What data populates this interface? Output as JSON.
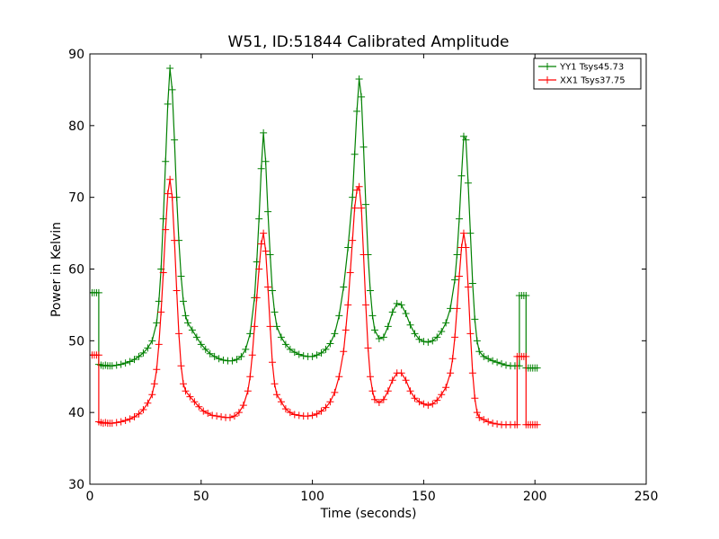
{
  "chart_data": {
    "type": "line",
    "title": "W51, ID:51844 Calibrated Amplitude",
    "xlabel": "Time (seconds)",
    "ylabel": "Power in Kelvin",
    "xlim": [
      0,
      250
    ],
    "ylim": [
      30,
      90
    ],
    "x_ticks": [
      0,
      50,
      100,
      150,
      200,
      250
    ],
    "y_ticks": [
      30,
      40,
      50,
      60,
      70,
      80,
      90
    ],
    "grid": false,
    "legend_position": "top-right",
    "marker": "+",
    "series": [
      {
        "name": "YY1 Tsys45.73",
        "color": "#008000",
        "points": [
          [
            0,
            56.7
          ],
          [
            1,
            56.7
          ],
          [
            2,
            56.7
          ],
          [
            3,
            56.7
          ],
          [
            4,
            56.7
          ],
          [
            4,
            46.7
          ],
          [
            5,
            46.6
          ],
          [
            6,
            46.5
          ],
          [
            7,
            46.6
          ],
          [
            8,
            46.5
          ],
          [
            9,
            46.5
          ],
          [
            10,
            46.5
          ],
          [
            12,
            46.6
          ],
          [
            14,
            46.7
          ],
          [
            16,
            46.9
          ],
          [
            18,
            47.1
          ],
          [
            20,
            47.4
          ],
          [
            22,
            47.8
          ],
          [
            24,
            48.3
          ],
          [
            26,
            49.0
          ],
          [
            28,
            50.0
          ],
          [
            30,
            52.5
          ],
          [
            31,
            55.5
          ],
          [
            32,
            60.0
          ],
          [
            33,
            67.0
          ],
          [
            34,
            75.0
          ],
          [
            35,
            83.0
          ],
          [
            36,
            88.0
          ],
          [
            37,
            85.0
          ],
          [
            38,
            78.0
          ],
          [
            39,
            70.0
          ],
          [
            40,
            64.0
          ],
          [
            41,
            59.0
          ],
          [
            42,
            55.5
          ],
          [
            43,
            53.5
          ],
          [
            44,
            52.5
          ],
          [
            46,
            51.5
          ],
          [
            48,
            50.5
          ],
          [
            50,
            49.5
          ],
          [
            52,
            48.8
          ],
          [
            54,
            48.2
          ],
          [
            56,
            47.8
          ],
          [
            58,
            47.5
          ],
          [
            60,
            47.3
          ],
          [
            62,
            47.2
          ],
          [
            64,
            47.2
          ],
          [
            66,
            47.4
          ],
          [
            68,
            47.8
          ],
          [
            70,
            48.8
          ],
          [
            72,
            51.0
          ],
          [
            74,
            56.0
          ],
          [
            75,
            61.0
          ],
          [
            76,
            67.0
          ],
          [
            77,
            74.0
          ],
          [
            78,
            79.0
          ],
          [
            79,
            75.0
          ],
          [
            80,
            68.0
          ],
          [
            81,
            62.0
          ],
          [
            82,
            57.0
          ],
          [
            83,
            54.0
          ],
          [
            84,
            52.0
          ],
          [
            86,
            50.5
          ],
          [
            88,
            49.5
          ],
          [
            90,
            48.8
          ],
          [
            92,
            48.4
          ],
          [
            94,
            48.1
          ],
          [
            96,
            47.9
          ],
          [
            98,
            47.8
          ],
          [
            100,
            47.8
          ],
          [
            102,
            48.0
          ],
          [
            104,
            48.3
          ],
          [
            106,
            48.8
          ],
          [
            108,
            49.6
          ],
          [
            110,
            51.0
          ],
          [
            112,
            53.5
          ],
          [
            114,
            57.5
          ],
          [
            116,
            63.0
          ],
          [
            118,
            70.0
          ],
          [
            119,
            76.0
          ],
          [
            120,
            82.0
          ],
          [
            121,
            86.5
          ],
          [
            122,
            84.0
          ],
          [
            123,
            77.0
          ],
          [
            124,
            69.0
          ],
          [
            125,
            62.0
          ],
          [
            126,
            57.0
          ],
          [
            127,
            53.5
          ],
          [
            128,
            51.5
          ],
          [
            130,
            50.3
          ],
          [
            132,
            50.5
          ],
          [
            134,
            52.0
          ],
          [
            136,
            54.0
          ],
          [
            138,
            55.2
          ],
          [
            140,
            55.0
          ],
          [
            142,
            53.8
          ],
          [
            144,
            52.2
          ],
          [
            146,
            51.0
          ],
          [
            148,
            50.2
          ],
          [
            150,
            49.9
          ],
          [
            152,
            49.8
          ],
          [
            154,
            50.0
          ],
          [
            156,
            50.5
          ],
          [
            158,
            51.3
          ],
          [
            160,
            52.5
          ],
          [
            162,
            54.5
          ],
          [
            164,
            58.5
          ],
          [
            165,
            62.0
          ],
          [
            166,
            67.0
          ],
          [
            167,
            73.0
          ],
          [
            168,
            78.5
          ],
          [
            169,
            78.0
          ],
          [
            170,
            72.0
          ],
          [
            171,
            65.0
          ],
          [
            172,
            58.0
          ],
          [
            173,
            53.0
          ],
          [
            174,
            50.0
          ],
          [
            175,
            48.5
          ],
          [
            177,
            47.8
          ],
          [
            179,
            47.5
          ],
          [
            181,
            47.2
          ],
          [
            183,
            47.0
          ],
          [
            185,
            46.8
          ],
          [
            187,
            46.6
          ],
          [
            189,
            46.5
          ],
          [
            191,
            46.5
          ],
          [
            192,
            46.5
          ],
          [
            193,
            46.5
          ],
          [
            193,
            56.3
          ],
          [
            194,
            56.3
          ],
          [
            195,
            56.3
          ],
          [
            196,
            56.3
          ],
          [
            196,
            46.2
          ],
          [
            197,
            46.2
          ],
          [
            198,
            46.2
          ],
          [
            199,
            46.2
          ],
          [
            200,
            46.2
          ],
          [
            201,
            46.2
          ]
        ]
      },
      {
        "name": "XX1 Tsys37.75",
        "color": "#ff0000",
        "points": [
          [
            0,
            48.0
          ],
          [
            1,
            48.0
          ],
          [
            2,
            48.0
          ],
          [
            3,
            48.0
          ],
          [
            4,
            48.0
          ],
          [
            4,
            38.7
          ],
          [
            5,
            38.6
          ],
          [
            6,
            38.5
          ],
          [
            7,
            38.6
          ],
          [
            8,
            38.5
          ],
          [
            9,
            38.5
          ],
          [
            10,
            38.5
          ],
          [
            12,
            38.6
          ],
          [
            14,
            38.7
          ],
          [
            16,
            38.9
          ],
          [
            18,
            39.1
          ],
          [
            20,
            39.4
          ],
          [
            22,
            39.8
          ],
          [
            24,
            40.4
          ],
          [
            26,
            41.3
          ],
          [
            28,
            42.5
          ],
          [
            29,
            44.0
          ],
          [
            30,
            46.0
          ],
          [
            31,
            49.5
          ],
          [
            32,
            54.0
          ],
          [
            33,
            59.5
          ],
          [
            34,
            65.5
          ],
          [
            35,
            70.5
          ],
          [
            36,
            72.5
          ],
          [
            37,
            70.0
          ],
          [
            38,
            64.0
          ],
          [
            39,
            57.0
          ],
          [
            40,
            51.0
          ],
          [
            41,
            46.5
          ],
          [
            42,
            44.0
          ],
          [
            43,
            43.0
          ],
          [
            45,
            42.2
          ],
          [
            47,
            41.5
          ],
          [
            49,
            40.8
          ],
          [
            51,
            40.2
          ],
          [
            53,
            39.9
          ],
          [
            55,
            39.6
          ],
          [
            57,
            39.5
          ],
          [
            59,
            39.4
          ],
          [
            61,
            39.3
          ],
          [
            63,
            39.3
          ],
          [
            65,
            39.5
          ],
          [
            67,
            40.0
          ],
          [
            69,
            41.0
          ],
          [
            71,
            43.0
          ],
          [
            72,
            45.0
          ],
          [
            73,
            48.0
          ],
          [
            74,
            52.0
          ],
          [
            75,
            56.0
          ],
          [
            76,
            60.0
          ],
          [
            77,
            63.5
          ],
          [
            78,
            65.0
          ],
          [
            79,
            62.5
          ],
          [
            80,
            57.5
          ],
          [
            81,
            52.0
          ],
          [
            82,
            47.0
          ],
          [
            83,
            44.0
          ],
          [
            84,
            42.5
          ],
          [
            86,
            41.5
          ],
          [
            88,
            40.5
          ],
          [
            90,
            40.0
          ],
          [
            92,
            39.7
          ],
          [
            94,
            39.6
          ],
          [
            96,
            39.5
          ],
          [
            98,
            39.5
          ],
          [
            100,
            39.6
          ],
          [
            102,
            39.8
          ],
          [
            104,
            40.2
          ],
          [
            106,
            40.7
          ],
          [
            108,
            41.5
          ],
          [
            110,
            42.8
          ],
          [
            112,
            45.0
          ],
          [
            114,
            48.5
          ],
          [
            115,
            51.5
          ],
          [
            116,
            55.0
          ],
          [
            117,
            59.5
          ],
          [
            118,
            64.0
          ],
          [
            119,
            68.5
          ],
          [
            120,
            71.0
          ],
          [
            121,
            71.5
          ],
          [
            122,
            68.5
          ],
          [
            123,
            62.0
          ],
          [
            124,
            55.0
          ],
          [
            125,
            49.0
          ],
          [
            126,
            45.0
          ],
          [
            127,
            43.0
          ],
          [
            128,
            41.8
          ],
          [
            130,
            41.4
          ],
          [
            132,
            41.8
          ],
          [
            134,
            43.0
          ],
          [
            136,
            44.5
          ],
          [
            138,
            45.5
          ],
          [
            140,
            45.5
          ],
          [
            142,
            44.5
          ],
          [
            144,
            43.0
          ],
          [
            146,
            42.0
          ],
          [
            148,
            41.5
          ],
          [
            150,
            41.2
          ],
          [
            152,
            41.0
          ],
          [
            154,
            41.2
          ],
          [
            156,
            41.7
          ],
          [
            158,
            42.5
          ],
          [
            160,
            43.5
          ],
          [
            162,
            45.5
          ],
          [
            163,
            47.5
          ],
          [
            164,
            50.5
          ],
          [
            165,
            54.5
          ],
          [
            166,
            59.0
          ],
          [
            167,
            63.0
          ],
          [
            168,
            65.0
          ],
          [
            169,
            63.0
          ],
          [
            170,
            57.5
          ],
          [
            171,
            51.0
          ],
          [
            172,
            45.5
          ],
          [
            173,
            42.0
          ],
          [
            174,
            40.0
          ],
          [
            175,
            39.3
          ],
          [
            177,
            39.0
          ],
          [
            179,
            38.7
          ],
          [
            181,
            38.5
          ],
          [
            183,
            38.4
          ],
          [
            185,
            38.3
          ],
          [
            187,
            38.3
          ],
          [
            189,
            38.3
          ],
          [
            191,
            38.3
          ],
          [
            192,
            38.3
          ],
          [
            192,
            47.8
          ],
          [
            193,
            47.8
          ],
          [
            194,
            47.8
          ],
          [
            195,
            47.8
          ],
          [
            196,
            47.8
          ],
          [
            196,
            38.3
          ],
          [
            197,
            38.3
          ],
          [
            198,
            38.3
          ],
          [
            199,
            38.3
          ],
          [
            200,
            38.3
          ],
          [
            201,
            38.3
          ]
        ]
      }
    ]
  }
}
